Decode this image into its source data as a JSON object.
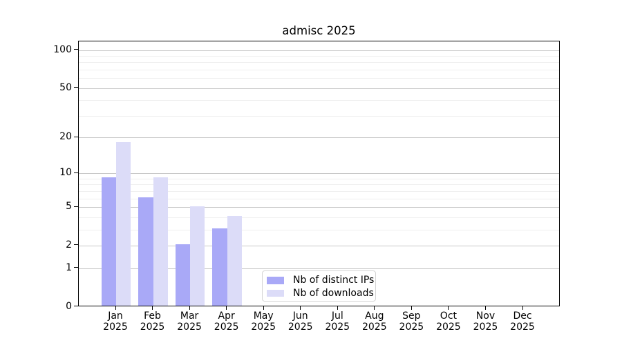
{
  "chart_data": {
    "type": "bar",
    "title": "admisc 2025",
    "year_label": "2025",
    "categories": [
      "Jan",
      "Feb",
      "Mar",
      "Apr",
      "May",
      "Jun",
      "Jul",
      "Aug",
      "Sep",
      "Oct",
      "Nov",
      "Dec"
    ],
    "series": [
      {
        "name": "Nb of distinct IPs",
        "color": "#a9a9f7",
        "values": [
          9,
          6,
          2,
          3,
          0,
          0,
          0,
          0,
          0,
          0,
          0,
          0
        ]
      },
      {
        "name": "Nb of downloads",
        "color": "#dcdcf8",
        "values": [
          18,
          9,
          5,
          4,
          0,
          0,
          0,
          0,
          0,
          0,
          0,
          0
        ]
      }
    ],
    "xlabel": "",
    "ylabel": "",
    "yscale": "log1p",
    "ylim": [
      0,
      117
    ],
    "yticks": [
      0,
      1,
      2,
      5,
      10,
      20,
      50,
      100
    ],
    "yticks_minor": [
      3,
      4,
      6,
      7,
      8,
      9,
      30,
      40,
      60,
      70,
      80,
      90
    ],
    "grid": "both",
    "legend_position": "lower-center",
    "colors": {
      "background": "#ffffff",
      "spine": "#000000",
      "text": "#000000",
      "grid_major": "#c6c6c6",
      "grid_minor": "#efefef",
      "legend_border": "#d4d4d4"
    }
  }
}
